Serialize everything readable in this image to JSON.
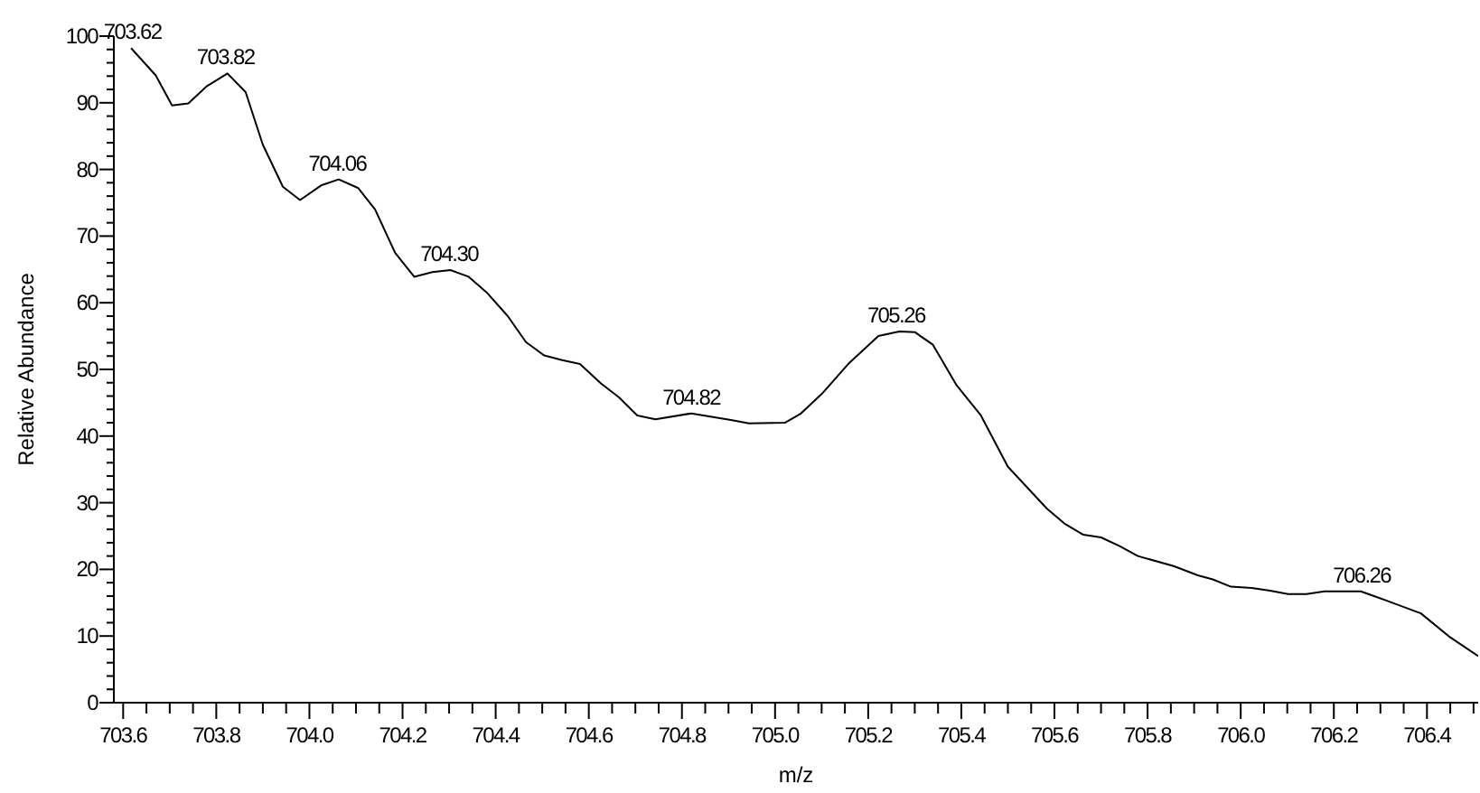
{
  "chart_data": {
    "type": "line",
    "xlabel": "m/z",
    "ylabel": "Relative Abundance",
    "x": [
      703.617,
      703.67,
      703.705,
      703.74,
      703.78,
      703.824,
      703.863,
      703.9,
      703.943,
      703.98,
      704.025,
      704.063,
      704.105,
      704.141,
      704.184,
      704.225,
      704.264,
      704.303,
      704.342,
      704.38,
      704.426,
      704.465,
      704.504,
      704.543,
      704.581,
      704.626,
      704.665,
      704.704,
      704.743,
      704.82,
      704.905,
      704.944,
      705.021,
      705.054,
      705.1,
      705.157,
      705.222,
      705.267,
      705.3,
      705.339,
      705.39,
      705.442,
      705.5,
      705.584,
      705.623,
      705.662,
      705.7,
      705.74,
      705.779,
      705.856,
      705.908,
      705.94,
      705.979,
      706.024,
      706.063,
      706.102,
      706.141,
      706.18,
      706.258,
      706.31,
      706.387,
      706.45,
      706.51
    ],
    "series": [
      {
        "color": "#000000",
        "values": [
          98.2,
          94.1,
          89.6,
          89.9,
          92.5,
          94.4,
          91.6,
          83.7,
          77.4,
          75.4,
          77.6,
          78.5,
          77.2,
          74.0,
          67.5,
          63.9,
          64.6,
          64.9,
          63.9,
          61.6,
          58.0,
          54.1,
          52.1,
          51.4,
          50.8,
          47.9,
          45.8,
          43.1,
          42.5,
          43.4,
          42.4,
          41.9,
          42.0,
          43.3,
          46.3,
          50.8,
          55.0,
          55.7,
          55.6,
          53.7,
          47.6,
          43.1,
          35.4,
          29.1,
          26.8,
          25.2,
          24.8,
          23.5,
          22.0,
          20.5,
          19.1,
          18.5,
          17.4,
          17.2,
          16.8,
          16.3,
          16.3,
          16.7,
          16.7,
          15.4,
          13.4,
          9.8,
          7.0
        ]
      }
    ],
    "annotations": [
      {
        "text": "703.62",
        "x": 703.62,
        "y": 98.2
      },
      {
        "text": "703.82",
        "x": 703.82,
        "y": 94.4
      },
      {
        "text": "704.06",
        "x": 704.06,
        "y": 78.5
      },
      {
        "text": "704.30",
        "x": 704.3,
        "y": 64.9
      },
      {
        "text": "704.82",
        "x": 704.82,
        "y": 43.4
      },
      {
        "text": "705.26",
        "x": 705.26,
        "y": 55.7
      },
      {
        "text": "706.26",
        "x": 706.26,
        "y": 16.7
      }
    ],
    "xlim": [
      703.58,
      706.51
    ],
    "xticks": [
      703.6,
      {
        "value": 703.65,
        "label": null
      },
      {
        "value": 703.7,
        "label": null
      },
      {
        "value": 703.75,
        "label": null
      },
      703.8,
      {
        "value": 703.85,
        "label": null
      },
      {
        "value": 703.9,
        "label": null
      },
      {
        "value": 703.95,
        "label": null
      },
      {
        "value": 704,
        "label": "704.0"
      },
      {
        "value": 704.05,
        "label": null
      },
      {
        "value": 704.1,
        "label": null
      },
      {
        "value": 704.15,
        "label": null
      },
      704.2,
      {
        "value": 704.25,
        "label": null
      },
      {
        "value": 704.3,
        "label": null
      },
      {
        "value": 704.35,
        "label": null
      },
      704.4,
      {
        "value": 704.45,
        "label": null
      },
      {
        "value": 704.5,
        "label": null
      },
      {
        "value": 704.55,
        "label": null
      },
      704.6,
      {
        "value": 704.65,
        "label": null
      },
      {
        "value": 704.7,
        "label": null
      },
      {
        "value": 704.75,
        "label": null
      },
      704.8,
      {
        "value": 704.85,
        "label": null
      },
      {
        "value": 704.9,
        "label": null
      },
      {
        "value": 704.95,
        "label": null
      },
      {
        "value": 705,
        "label": "705.0"
      },
      {
        "value": 705.05,
        "label": null
      },
      {
        "value": 705.1,
        "label": null
      },
      {
        "value": 705.15,
        "label": null
      },
      705.2,
      {
        "value": 705.25,
        "label": null
      },
      {
        "value": 705.3,
        "label": null
      },
      {
        "value": 705.35,
        "label": null
      },
      705.4,
      {
        "value": 705.45,
        "label": null
      },
      {
        "value": 705.5,
        "label": null
      },
      {
        "value": 705.55,
        "label": null
      },
      705.6,
      {
        "value": 705.65,
        "label": null
      },
      {
        "value": 705.7,
        "label": null
      },
      {
        "value": 705.75,
        "label": null
      },
      705.8,
      {
        "value": 705.85,
        "label": null
      },
      {
        "value": 705.9,
        "label": null
      },
      {
        "value": 705.95,
        "label": null
      },
      {
        "value": 706,
        "label": "706.0"
      },
      {
        "value": 706.05,
        "label": null
      },
      {
        "value": 706.1,
        "label": null
      },
      {
        "value": 706.15,
        "label": null
      },
      706.2,
      {
        "value": 706.25,
        "label": null
      },
      {
        "value": 706.3,
        "label": null
      },
      {
        "value": 706.35,
        "label": null
      },
      706.4,
      {
        "value": 706.45,
        "label": null
      },
      {
        "value": 706.5,
        "label": null
      }
    ],
    "ylim": [
      0,
      100
    ],
    "yticks": [
      0,
      {
        "value": 2,
        "label": null
      },
      {
        "value": 4,
        "label": null
      },
      {
        "value": 6,
        "label": null
      },
      {
        "value": 8,
        "label": null
      },
      10,
      {
        "value": 12,
        "label": null
      },
      {
        "value": 14,
        "label": null
      },
      {
        "value": 16,
        "label": null
      },
      {
        "value": 18,
        "label": null
      },
      20,
      {
        "value": 22,
        "label": null
      },
      {
        "value": 24,
        "label": null
      },
      {
        "value": 26,
        "label": null
      },
      {
        "value": 28,
        "label": null
      },
      30,
      {
        "value": 32,
        "label": null
      },
      {
        "value": 34,
        "label": null
      },
      {
        "value": 36,
        "label": null
      },
      {
        "value": 38,
        "label": null
      },
      40,
      {
        "value": 42,
        "label": null
      },
      {
        "value": 44,
        "label": null
      },
      {
        "value": 46,
        "label": null
      },
      {
        "value": 48,
        "label": null
      },
      50,
      {
        "value": 52,
        "label": null
      },
      {
        "value": 54,
        "label": null
      },
      {
        "value": 56,
        "label": null
      },
      {
        "value": 58,
        "label": null
      },
      60,
      {
        "value": 62,
        "label": null
      },
      {
        "value": 64,
        "label": null
      },
      {
        "value": 66,
        "label": null
      },
      {
        "value": 68,
        "label": null
      },
      70,
      {
        "value": 72,
        "label": null
      },
      {
        "value": 74,
        "label": null
      },
      {
        "value": 76,
        "label": null
      },
      {
        "value": 78,
        "label": null
      },
      80,
      {
        "value": 82,
        "label": null
      },
      {
        "value": 84,
        "label": null
      },
      {
        "value": 86,
        "label": null
      },
      {
        "value": 88,
        "label": null
      },
      90,
      {
        "value": 92,
        "label": null
      },
      {
        "value": 94,
        "label": null
      },
      {
        "value": 96,
        "label": null
      },
      {
        "value": 98,
        "label": null
      },
      100
    ],
    "grid": false,
    "legend": false,
    "marker": "none",
    "line_style": "solid"
  }
}
